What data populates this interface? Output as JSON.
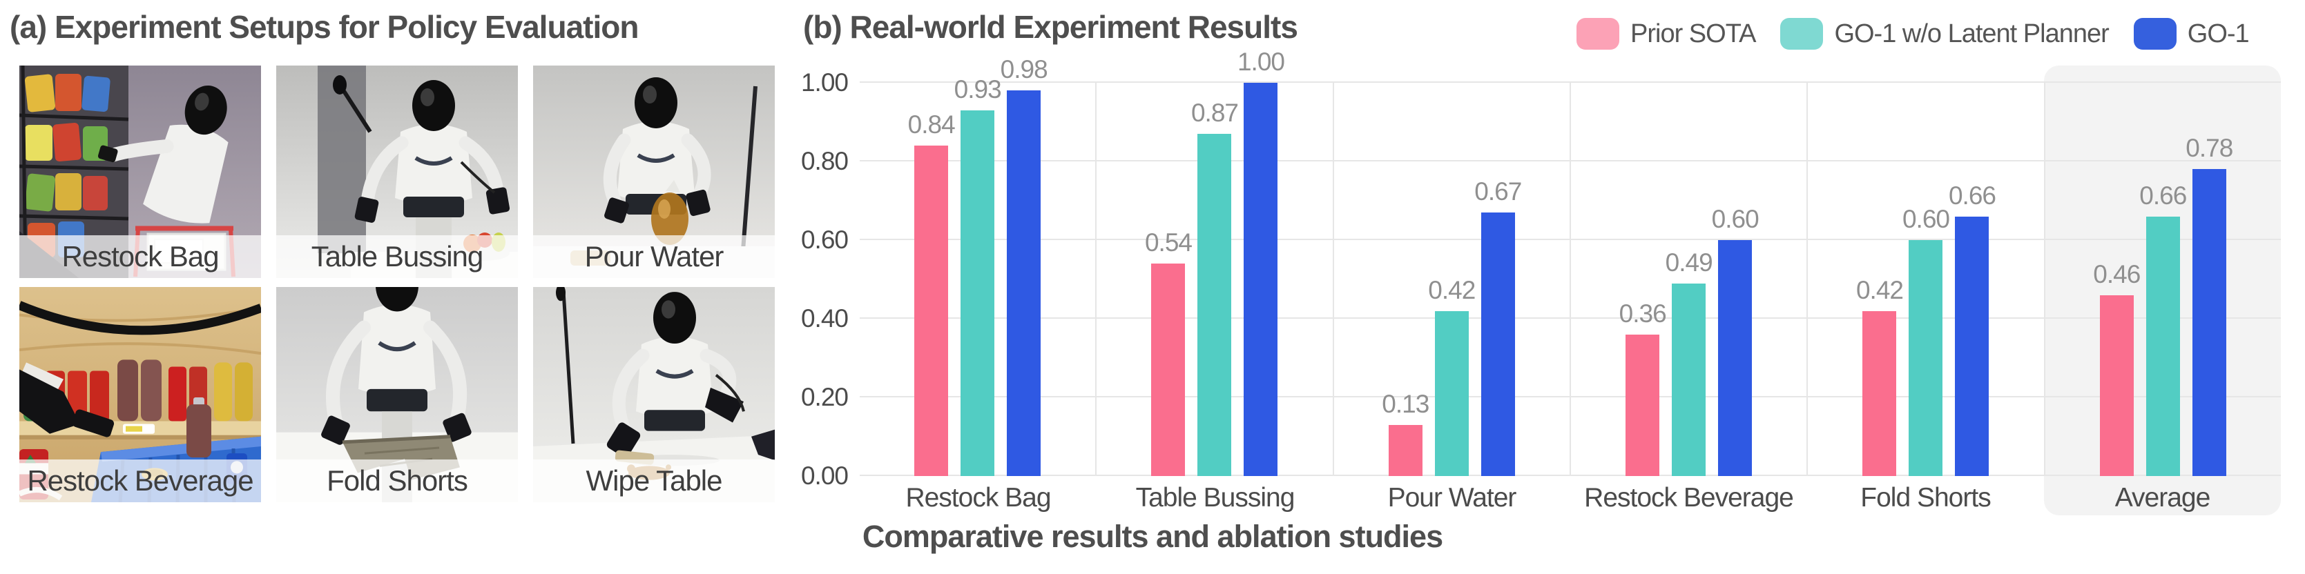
{
  "panel_a": {
    "title": "(a) Experiment Setups for Policy Evaluation",
    "tiles": [
      {
        "label": "Restock Bag"
      },
      {
        "label": "Table Bussing"
      },
      {
        "label": "Pour Water"
      },
      {
        "label": "Restock Beverage"
      },
      {
        "label": "Fold Shorts"
      },
      {
        "label": "Wipe Table"
      }
    ]
  },
  "panel_b": {
    "title": "(b) Real-world Experiment Results",
    "caption": "Comparative results and ablation studies"
  },
  "chart_data": {
    "type": "bar",
    "title": "(b) Real-world Experiment Results",
    "categories": [
      "Restock Bag",
      "Table Bussing",
      "Pour Water",
      "Restock Beverage",
      "Fold Shorts",
      "Average"
    ],
    "series": [
      {
        "name": "Prior SOTA",
        "color": "#FA6E8E",
        "legend_color": "#FCA2B6",
        "values": [
          0.84,
          0.54,
          0.13,
          0.36,
          0.42,
          0.46
        ]
      },
      {
        "name": "GO-1 w/o Latent Planner",
        "color": "#52CDC3",
        "legend_color": "#7FD9D2",
        "values": [
          0.93,
          0.87,
          0.42,
          0.49,
          0.6,
          0.66
        ]
      },
      {
        "name": "GO-1",
        "color": "#2F59E3",
        "legend_color": "#3560DE",
        "values": [
          0.98,
          1.0,
          0.67,
          0.6,
          0.66,
          0.78
        ]
      }
    ],
    "ylim": [
      0,
      1
    ],
    "yticks": [
      "0.00",
      "0.20",
      "0.40",
      "0.60",
      "0.80",
      "1.00"
    ],
    "grid": true,
    "legend_position": "top-right",
    "highlight_category": "Average",
    "highlight_color": "#f3f3f3",
    "value_label_format": "0.00",
    "xlabel": "",
    "ylabel": ""
  }
}
